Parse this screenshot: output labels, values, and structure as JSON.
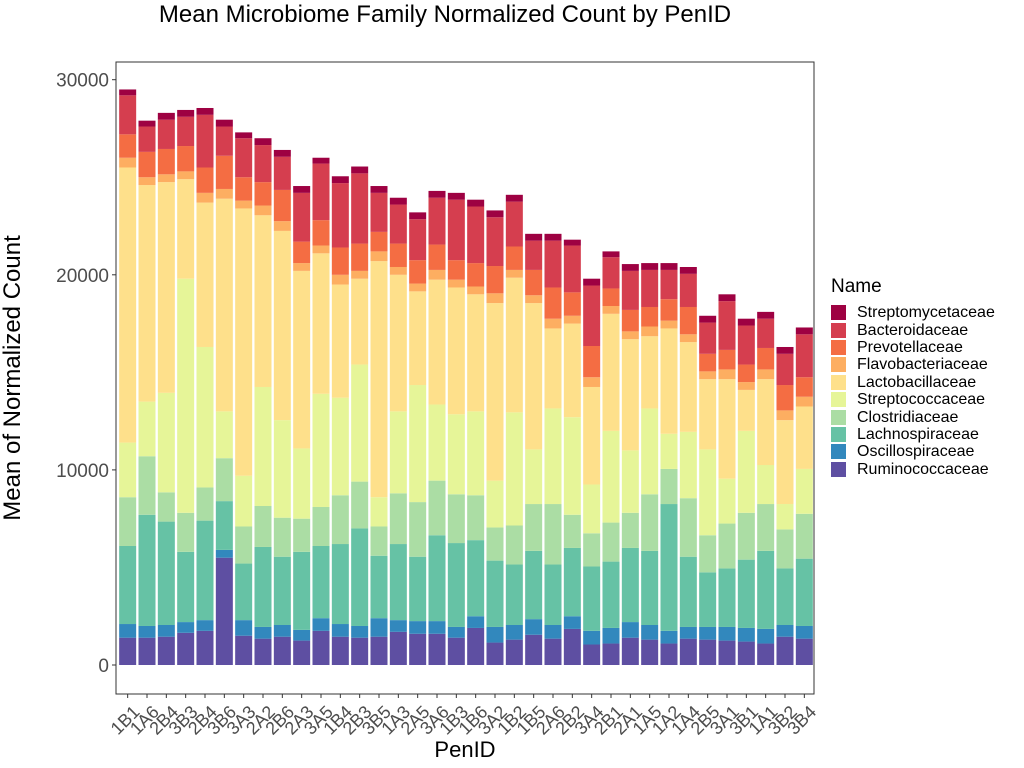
{
  "chart_data": {
    "type": "bar",
    "stacked": true,
    "title": "Mean Microbiome Family Normalized Count by PenID",
    "xlabel": "PenID",
    "ylabel": "Mean of Normalized Count",
    "ylim": [
      0,
      30000
    ],
    "yticks": [
      0,
      10000,
      20000,
      30000
    ],
    "legend_title": "Name",
    "legend_position": "right",
    "grid": false,
    "categories": [
      "1B1",
      "1A6",
      "2B4",
      "3B3",
      "2B4",
      "3B6",
      "3A3",
      "2A2",
      "2B6",
      "2A3",
      "3A5",
      "1B4",
      "2B3",
      "3B5",
      "1A3",
      "2A5",
      "3A6",
      "1B3",
      "1B6",
      "3A2",
      "1B2",
      "1B5",
      "2A6",
      "2B2",
      "3A4",
      "2B1",
      "2A1",
      "1A5",
      "1A2",
      "1A4",
      "2B5",
      "3A1",
      "3B1",
      "1A1",
      "3B2",
      "3B4"
    ],
    "series": [
      {
        "name": "Ruminococcaceae",
        "color": "#5E4FA2",
        "values": [
          1400,
          1400,
          1450,
          1650,
          1750,
          5500,
          1500,
          1350,
          1450,
          1250,
          1750,
          1450,
          1400,
          1450,
          1700,
          1600,
          1600,
          1400,
          1900,
          1150,
          1300,
          1550,
          1350,
          1850,
          1050,
          1100,
          1400,
          1300,
          1100,
          1350,
          1300,
          1250,
          1200,
          1100,
          1450,
          1350
        ]
      },
      {
        "name": "Oscillospiraceae",
        "color": "#3288BD",
        "values": [
          700,
          600,
          600,
          550,
          550,
          400,
          800,
          600,
          600,
          550,
          650,
          650,
          600,
          950,
          600,
          650,
          650,
          550,
          600,
          800,
          750,
          800,
          700,
          650,
          700,
          800,
          800,
          750,
          650,
          600,
          650,
          700,
          700,
          750,
          600,
          650
        ]
      },
      {
        "name": "Lachnospiraceae",
        "color": "#66C2A5",
        "values": [
          4000,
          5700,
          5300,
          3600,
          5100,
          2500,
          2900,
          4100,
          3500,
          4000,
          3700,
          4100,
          5000,
          3200,
          3900,
          3300,
          4400,
          4300,
          3900,
          3400,
          3100,
          3500,
          3100,
          3500,
          3300,
          3400,
          3800,
          3800,
          6500,
          3600,
          2800,
          3000,
          3500,
          4000,
          2900,
          3450
        ]
      },
      {
        "name": "Clostridiaceae",
        "color": "#ABDDA4",
        "values": [
          2500,
          3000,
          1500,
          2000,
          1700,
          2200,
          1900,
          2100,
          2000,
          1700,
          2000,
          2500,
          2400,
          1500,
          2600,
          2800,
          2800,
          2500,
          2300,
          1700,
          2000,
          2400,
          3100,
          1700,
          1700,
          2000,
          1800,
          2900,
          1800,
          3000,
          1900,
          2300,
          2400,
          2400,
          2000,
          2300
        ]
      },
      {
        "name": "Streptococcaceae",
        "color": "#E6F598",
        "values": [
          2800,
          2800,
          5100,
          12000,
          7200,
          2400,
          2600,
          6100,
          5000,
          3600,
          5800,
          5000,
          6000,
          1500,
          4200,
          6000,
          3900,
          4100,
          4300,
          2400,
          5800,
          2800,
          4900,
          5000,
          2500,
          4700,
          3200,
          4400,
          1800,
          3400,
          4400,
          2300,
          4200,
          2000,
          1300,
          2300
        ]
      },
      {
        "name": "Lactobacillaceae",
        "color": "#FEE08B",
        "values": [
          14100,
          11100,
          10800,
          5100,
          7400,
          10900,
          13700,
          8800,
          9700,
          9100,
          7200,
          5800,
          4400,
          12100,
          7000,
          4800,
          6400,
          6500,
          6000,
          9100,
          6900,
          7500,
          4100,
          4800,
          5000,
          6000,
          5700,
          3700,
          5400,
          4600,
          3600,
          5100,
          2100,
          4400,
          4300,
          3200
        ]
      },
      {
        "name": "Flavobacteriaceae",
        "color": "#FDAE61",
        "values": [
          500,
          400,
          400,
          400,
          500,
          500,
          400,
          500,
          500,
          400,
          400,
          500,
          400,
          500,
          400,
          400,
          500,
          400,
          400,
          500,
          400,
          400,
          500,
          400,
          500,
          400,
          400,
          500,
          400,
          400,
          400,
          500,
          400,
          500,
          500,
          500
        ]
      },
      {
        "name": "Prevotellaceae",
        "color": "#F46D43",
        "values": [
          1200,
          1300,
          1300,
          1300,
          1300,
          1700,
          1200,
          1200,
          1600,
          1100,
          1300,
          1400,
          1400,
          1000,
          1200,
          1200,
          1300,
          1000,
          1200,
          1400,
          1200,
          1300,
          1600,
          1200,
          1600,
          900,
          1100,
          1000,
          1100,
          1400,
          900,
          1000,
          900,
          1100,
          1300,
          1000
        ]
      },
      {
        "name": "Bacteroidaceae",
        "color": "#D53E4F",
        "values": [
          2000,
          1300,
          1500,
          1500,
          2700,
          1500,
          2000,
          1900,
          1700,
          2500,
          2900,
          3300,
          3600,
          2000,
          2000,
          2100,
          2400,
          3100,
          2900,
          2500,
          2300,
          1500,
          2400,
          2400,
          3100,
          1600,
          2000,
          1900,
          1500,
          1700,
          1600,
          2500,
          2000,
          1500,
          1600,
          2200
        ]
      },
      {
        "name": "Streptomycetaceae",
        "color": "#9E0142",
        "values": [
          300,
          300,
          350,
          350,
          350,
          350,
          300,
          350,
          350,
          350,
          300,
          350,
          350,
          350,
          350,
          350,
          350,
          350,
          350,
          350,
          350,
          350,
          350,
          300,
          350,
          300,
          350,
          350,
          350,
          350,
          350,
          350,
          350,
          350,
          350,
          350
        ]
      }
    ]
  }
}
